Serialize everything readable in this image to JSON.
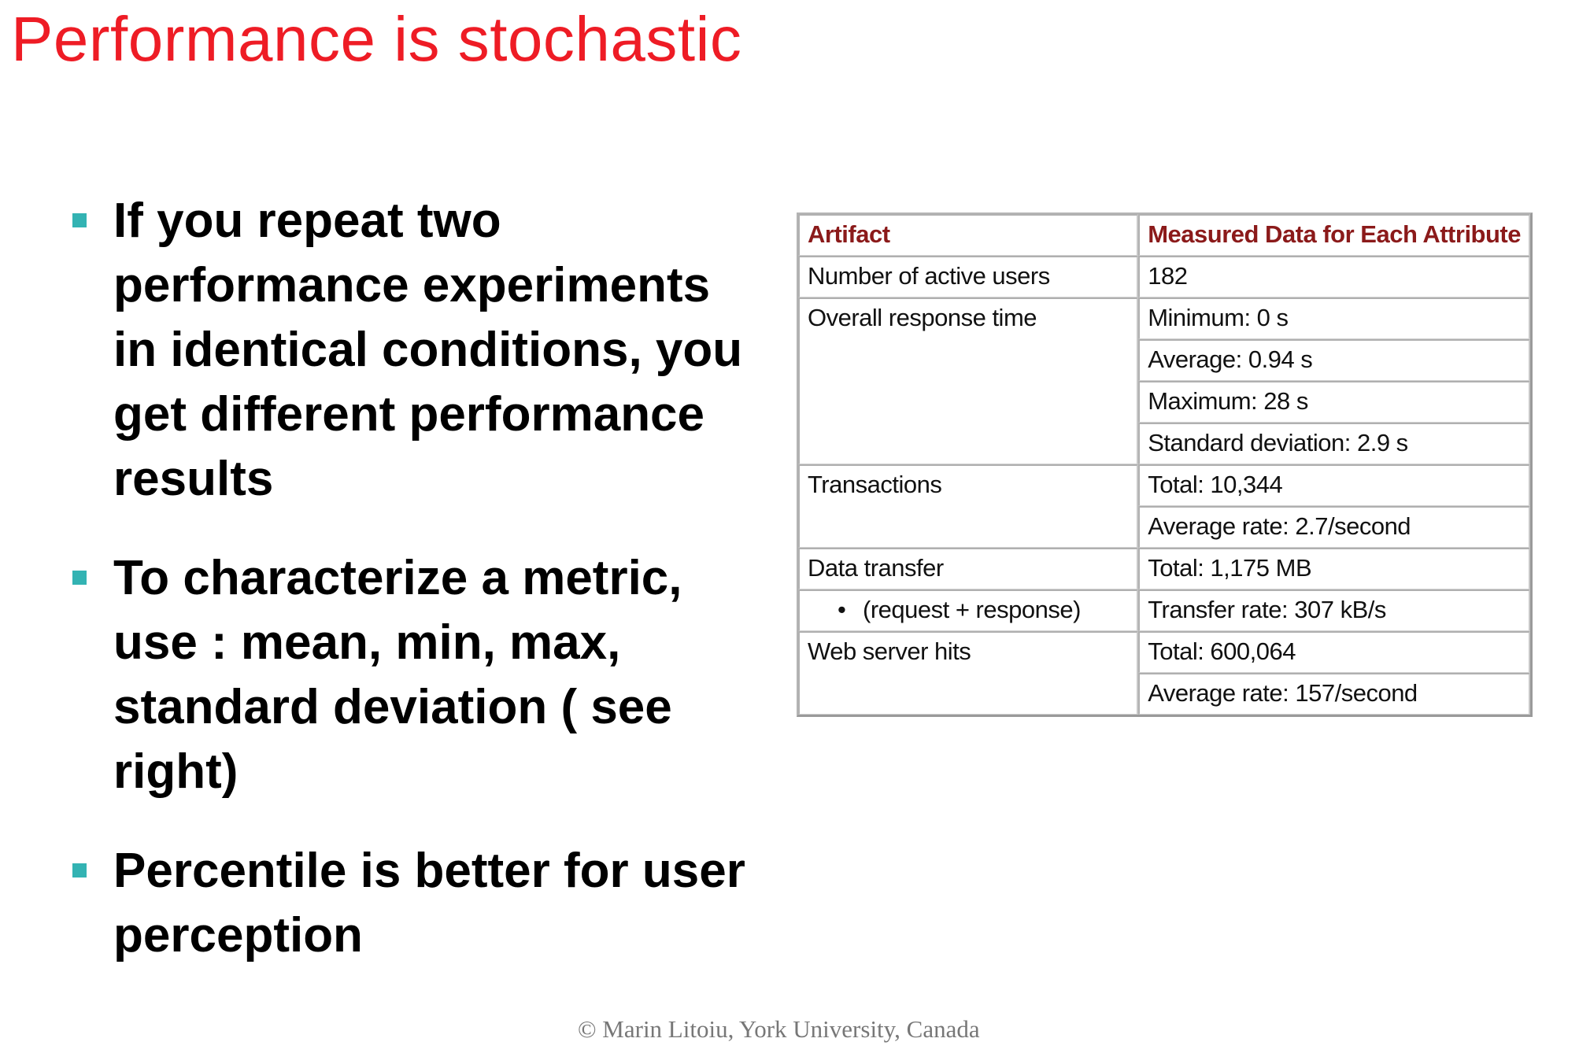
{
  "title": "Performance is stochastic",
  "bullets": [
    "If you repeat two performance experiments in identical conditions, you get different performance results",
    "To characterize a metric, use : mean, min, max, standard deviation ( see right)",
    "Percentile is better for user perception"
  ],
  "table": {
    "headers": [
      "Artifact",
      "Measured Data for Each Attribute"
    ],
    "rows": {
      "active_users": {
        "artifact": "Number of active users",
        "value": "182"
      },
      "response_time": {
        "artifact": "Overall response time",
        "values": [
          "Minimum: 0 s",
          "Average: 0.94 s",
          "Maximum: 28 s",
          "Standard deviation: 2.9 s"
        ]
      },
      "transactions": {
        "artifact": "Transactions",
        "values": [
          "Total: 10,344",
          "Average rate: 2.7/second"
        ]
      },
      "data_transfer": {
        "artifact": "Data transfer",
        "sub_artifact": "(request + response)",
        "values": [
          "Total: 1,175 MB",
          "Transfer rate: 307 kB/s"
        ]
      },
      "web_hits": {
        "artifact": "Web server hits",
        "values": [
          "Total: 600,064",
          "Average rate: 157/second"
        ]
      }
    }
  },
  "footer": "©  Marin Litoiu, York University, Canada",
  "colors": {
    "title": "#ee1c25",
    "bullet_marker": "#33b3b3",
    "table_header": "#8b1a1a"
  }
}
